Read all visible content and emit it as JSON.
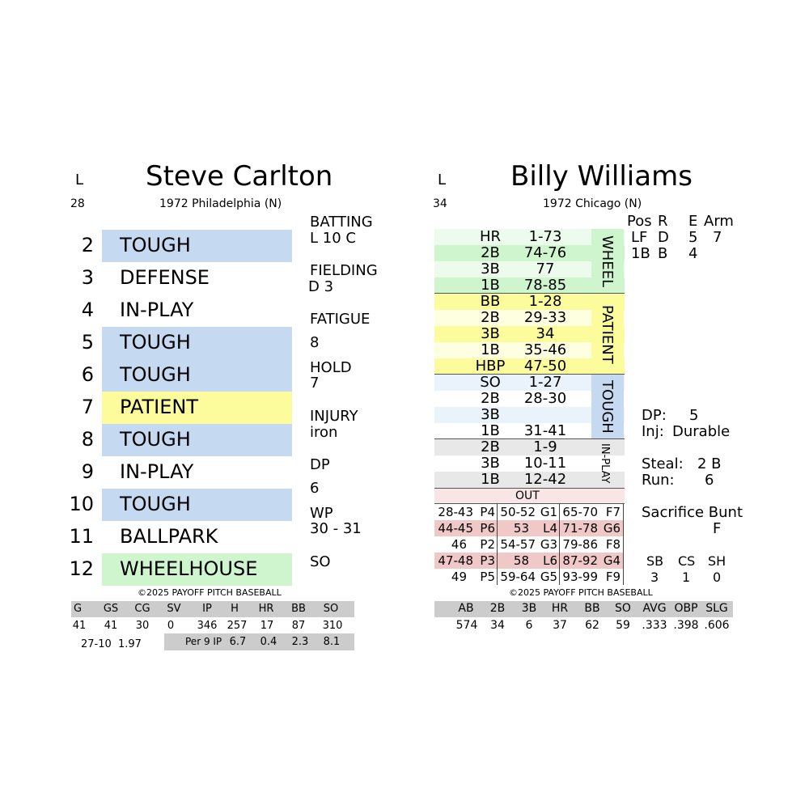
{
  "pitcher": {
    "hand": "L",
    "name": "Steve Carlton",
    "age": "28",
    "team": "1972 Philadelphia (N)",
    "results": [
      {
        "num": "2",
        "label": "TOUGH"
      },
      {
        "num": "3",
        "label": "DEFENSE"
      },
      {
        "num": "4",
        "label": "IN-PLAY"
      },
      {
        "num": "5",
        "label": "TOUGH"
      },
      {
        "num": "6",
        "label": "TOUGH"
      },
      {
        "num": "7",
        "label": "PATIENT"
      },
      {
        "num": "8",
        "label": "TOUGH"
      },
      {
        "num": "9",
        "label": "IN-PLAY"
      },
      {
        "num": "10",
        "label": "TOUGH"
      },
      {
        "num": "11",
        "label": "BALLPARK"
      },
      {
        "num": "12",
        "label": "WHEELHOUSE"
      }
    ],
    "side": {
      "batting_label": "BATTING",
      "batting_value": "L  10 C",
      "fielding_label": "FIELDING",
      "fielding_value": "D  3",
      "fatigue_label": "FATIGUE",
      "fatigue_value": "8",
      "hold_label": "HOLD",
      "hold_value": "7",
      "injury_label": "INJURY",
      "injury_value": "iron",
      "dp_label": "DP",
      "dp_value": "6",
      "wp_label": "WP",
      "wp_value": "30 - 31",
      "so_label": "SO"
    },
    "copyright": "©2025 PAYOFF PITCH BASEBALL",
    "stats": {
      "headers": [
        "G",
        "GS",
        "CG",
        "SV",
        "IP",
        "H",
        "HR",
        "BB",
        "SO"
      ],
      "values": [
        "41",
        "41",
        "30",
        "0",
        "346",
        "257",
        "17",
        "87",
        "310"
      ],
      "record": "27-10",
      "era": "1.97",
      "per9_label": "Per 9 IP",
      "per9": [
        "6.7",
        "0.4",
        "2.3",
        "8.1"
      ]
    }
  },
  "batter": {
    "hand": "L",
    "name": "Billy Williams",
    "age": "34",
    "team": "1972 Chicago (N)",
    "wheel": {
      "title": "WHEEL",
      "rows": [
        [
          "HR",
          "1-73"
        ],
        [
          "2B",
          "74-76"
        ],
        [
          "3B",
          "77"
        ],
        [
          "1B",
          "78-85"
        ]
      ]
    },
    "patient": {
      "title": "PATIENT",
      "rows": [
        [
          "BB",
          "1-28"
        ],
        [
          "2B",
          "29-33"
        ],
        [
          "3B",
          "34"
        ],
        [
          "1B",
          "35-46"
        ],
        [
          "HBP",
          "47-50"
        ]
      ]
    },
    "tough": {
      "title": "TOUGH",
      "rows": [
        [
          "SO",
          "1-27"
        ],
        [
          "2B",
          "28-30"
        ],
        [
          "3B",
          ""
        ],
        [
          "1B",
          "31-41"
        ]
      ]
    },
    "inplay": {
      "title": "IN-PLAY",
      "rows": [
        [
          "2B",
          "1-9"
        ],
        [
          "3B",
          "10-11"
        ],
        [
          "1B",
          "12-42"
        ]
      ]
    },
    "out_label": "OUT",
    "outs": [
      [
        "28-43",
        "P4",
        "50-52",
        "G1",
        "65-70",
        "F7"
      ],
      [
        "44-45",
        "P6",
        "53",
        "L4",
        "71-78",
        "G6"
      ],
      [
        "46",
        "P2",
        "54-57",
        "G3",
        "79-86",
        "F8"
      ],
      [
        "47-48",
        "P3",
        "58",
        "L6",
        "87-92",
        "G4"
      ],
      [
        "49",
        "P5",
        "59-64",
        "G5",
        "93-99",
        "F9"
      ]
    ],
    "fielding": {
      "headers": [
        "Pos",
        "R",
        "E",
        "Arm"
      ],
      "rows": [
        [
          "LF",
          "D",
          "5",
          "7"
        ],
        [
          "1B",
          "B",
          "4",
          ""
        ]
      ]
    },
    "dp_label": "DP:",
    "dp_value": "5",
    "inj_label": "Inj:",
    "inj_value": "Durable",
    "steal_label": "Steal:",
    "steal_value": "2 B",
    "run_label": "Run:",
    "run_value": "6",
    "sac_label": "Sacrifice Bunt",
    "sac_value": "F",
    "sb_headers": [
      "SB",
      "CS",
      "SH"
    ],
    "sb_values": [
      "3",
      "1",
      "0"
    ],
    "copyright": "©2025 PAYOFF PITCH BASEBALL",
    "stats": {
      "headers": [
        "AB",
        "2B",
        "3B",
        "HR",
        "BB",
        "SO",
        "AVG",
        "OBP",
        "SLG"
      ],
      "values": [
        "574",
        "34",
        "6",
        "37",
        "62",
        "59",
        ".333",
        ".398",
        ".606"
      ]
    }
  }
}
